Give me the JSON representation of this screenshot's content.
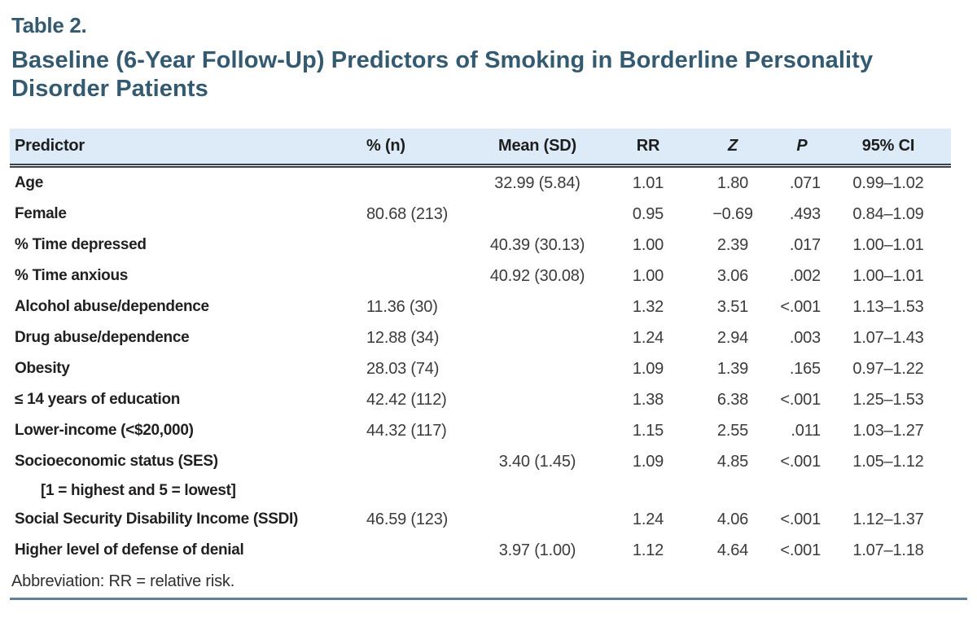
{
  "page": {
    "table_label": "Table 2.",
    "title": "Baseline (6-Year Follow-Up) Predictors of Smoking in Borderline Personality Disorder Patients",
    "footnote": "Abbreviation: RR = relative risk."
  },
  "table": {
    "columns": [
      "Predictor",
      "% (n)",
      "Mean (SD)",
      "RR",
      "Z",
      "P",
      "95% CI"
    ],
    "rows": [
      {
        "predictor": "Age",
        "pct_n": "",
        "mean_sd": "32.99 (5.84)",
        "rr": "1.01",
        "z": "1.80",
        "p": ".071",
        "ci": "0.99–1.02"
      },
      {
        "predictor": "Female",
        "pct_n": "80.68 (213)",
        "mean_sd": "",
        "rr": "0.95",
        "z": "−0.69",
        "p": ".493",
        "ci": "0.84–1.09"
      },
      {
        "predictor": "% Time depressed",
        "pct_n": "",
        "mean_sd": "40.39 (30.13)",
        "rr": "1.00",
        "z": "2.39",
        "p": ".017",
        "ci": "1.00–1.01"
      },
      {
        "predictor": "% Time anxious",
        "pct_n": "",
        "mean_sd": "40.92 (30.08)",
        "rr": "1.00",
        "z": "3.06",
        "p": ".002",
        "ci": "1.00–1.01"
      },
      {
        "predictor": "Alcohol abuse/dependence",
        "pct_n": "11.36 (30)",
        "mean_sd": "",
        "rr": "1.32",
        "z": "3.51",
        "p": "<.001",
        "ci": "1.13–1.53"
      },
      {
        "predictor": "Drug abuse/dependence",
        "pct_n": "12.88 (34)",
        "mean_sd": "",
        "rr": "1.24",
        "z": "2.94",
        "p": ".003",
        "ci": "1.07–1.43"
      },
      {
        "predictor": "Obesity",
        "pct_n": "28.03 (74)",
        "mean_sd": "",
        "rr": "1.09",
        "z": "1.39",
        "p": ".165",
        "ci": "0.97–1.22"
      },
      {
        "predictor": "≤ 14 years of education",
        "pct_n": "42.42 (112)",
        "mean_sd": "",
        "rr": "1.38",
        "z": "6.38",
        "p": "<.001",
        "ci": "1.25–1.53"
      },
      {
        "predictor": "Lower-income (<$20,000)",
        "pct_n": "44.32 (117)",
        "mean_sd": "",
        "rr": "1.15",
        "z": "2.55",
        "p": ".011",
        "ci": "1.03–1.27"
      },
      {
        "predictor": "Socioeconomic status (SES)",
        "predictor_line2": "[1 = highest and 5 = lowest]",
        "pct_n": "",
        "mean_sd": "3.40 (1.45)",
        "rr": "1.09",
        "z": "4.85",
        "p": "<.001",
        "ci": "1.05–1.12"
      },
      {
        "predictor": "Social Security Disability Income (SSDI)",
        "pct_n": "46.59 (123)",
        "mean_sd": "",
        "rr": "1.24",
        "z": "4.06",
        "p": "<.001",
        "ci": "1.12–1.37"
      },
      {
        "predictor": "Higher level of defense of denial",
        "pct_n": "",
        "mean_sd": "3.97 (1.00)",
        "rr": "1.12",
        "z": "4.64",
        "p": "<.001",
        "ci": "1.07–1.18"
      }
    ]
  },
  "colors": {
    "title_accent": "#335a70",
    "header_bg": "#dcebf7",
    "header_rule": "#3a4145",
    "bottom_rule": "#5f8199",
    "label_text": "#221f1f",
    "value_text": "#3b3b3b"
  }
}
